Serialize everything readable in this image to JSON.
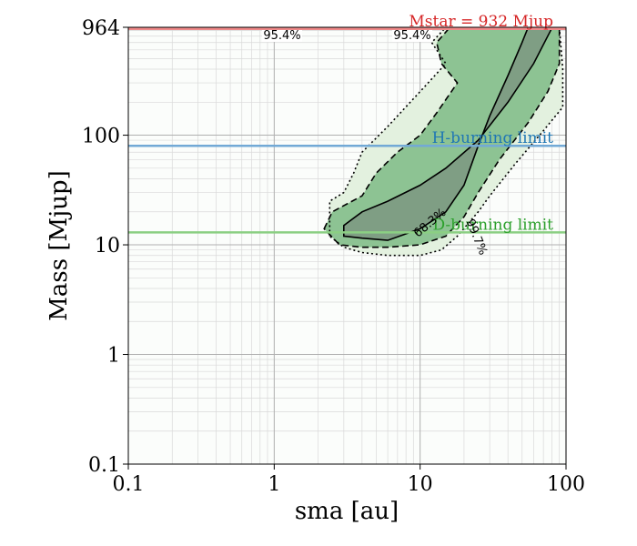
{
  "chart_data": {
    "type": "contour",
    "xlabel": "sma [au]",
    "ylabel": "Mass [Mjup]",
    "x_scale": "log",
    "y_scale": "log",
    "xlim": [
      0.1,
      100
    ],
    "ylim": [
      0.1,
      964
    ],
    "x_ticks": [
      {
        "value": 0.1,
        "label": "0.1"
      },
      {
        "value": 1,
        "label": "1"
      },
      {
        "value": 10,
        "label": "10"
      },
      {
        "value": 100,
        "label": "100"
      }
    ],
    "y_ticks": [
      {
        "value": 0.1,
        "label": "0.1"
      },
      {
        "value": 1,
        "label": "1"
      },
      {
        "value": 10,
        "label": "10"
      },
      {
        "value": 100,
        "label": "100"
      },
      {
        "value": 964,
        "label": "964"
      }
    ],
    "grid": true,
    "reference_lines": [
      {
        "label": "Mstar = 932 Mjup",
        "y": 932,
        "color": "#d62728"
      },
      {
        "label": "H-burning limit",
        "y": 80,
        "color": "#1f77b4"
      },
      {
        "label": "D-burning limit",
        "y": 13,
        "color": "#2ca02c"
      }
    ],
    "contour_levels": [
      {
        "label": "68.3%",
        "style": "solid"
      },
      {
        "label": "95.4%",
        "style": "dashed"
      },
      {
        "label": "99.7%",
        "style": "dotted"
      }
    ],
    "contour_label_texts": [
      "95.4%",
      "95.4%",
      "68.3%",
      "99.7%"
    ],
    "contours": {
      "solid": [
        [
          3,
          15
        ],
        [
          4,
          20
        ],
        [
          6,
          25
        ],
        [
          10,
          35
        ],
        [
          15,
          50
        ],
        [
          25,
          90
        ],
        [
          40,
          200
        ],
        [
          60,
          450
        ],
        [
          80,
          950
        ],
        [
          85,
          964
        ],
        [
          55,
          964
        ],
        [
          50,
          700
        ],
        [
          40,
          350
        ],
        [
          30,
          150
        ],
        [
          25,
          80
        ],
        [
          20,
          35
        ],
        [
          15,
          20
        ],
        [
          10,
          14
        ],
        [
          6,
          11
        ],
        [
          4,
          11.5
        ],
        [
          3,
          12
        ]
      ],
      "dashed": [
        [
          2.2,
          14
        ],
        [
          2.5,
          20
        ],
        [
          4,
          28
        ],
        [
          5,
          45
        ],
        [
          7,
          70
        ],
        [
          10,
          100
        ],
        [
          13,
          160
        ],
        [
          18,
          300
        ],
        [
          14,
          450
        ],
        [
          13,
          700
        ],
        [
          16,
          964
        ],
        [
          90,
          964
        ],
        [
          90,
          450
        ],
        [
          75,
          250
        ],
        [
          55,
          130
        ],
        [
          35,
          60
        ],
        [
          25,
          30
        ],
        [
          20,
          18
        ],
        [
          15,
          12
        ],
        [
          10,
          10
        ],
        [
          6,
          9.5
        ],
        [
          4,
          9.5
        ],
        [
          2.8,
          10
        ]
      ],
      "dotted": [
        [
          2.4,
          12
        ],
        [
          2.4,
          25
        ],
        [
          3,
          30
        ],
        [
          3.5,
          45
        ],
        [
          4,
          70
        ],
        [
          6,
          120
        ],
        [
          10,
          250
        ],
        [
          15,
          450
        ],
        [
          12,
          700
        ],
        [
          15,
          964
        ],
        [
          90,
          964
        ],
        [
          95,
          400
        ],
        [
          95,
          180
        ],
        [
          70,
          110
        ],
        [
          45,
          55
        ],
        [
          30,
          28
        ],
        [
          25,
          20
        ],
        [
          18,
          12
        ],
        [
          14,
          9
        ],
        [
          10,
          8
        ],
        [
          6,
          8
        ],
        [
          4,
          8.5
        ],
        [
          3,
          9.5
        ]
      ],
      "dotted_top": [
        [
          0.45,
          964
        ],
        [
          0.5,
          930
        ],
        [
          0.8,
          925
        ],
        [
          2,
          925
        ],
        [
          3,
          940
        ],
        [
          6,
          964
        ]
      ]
    }
  }
}
